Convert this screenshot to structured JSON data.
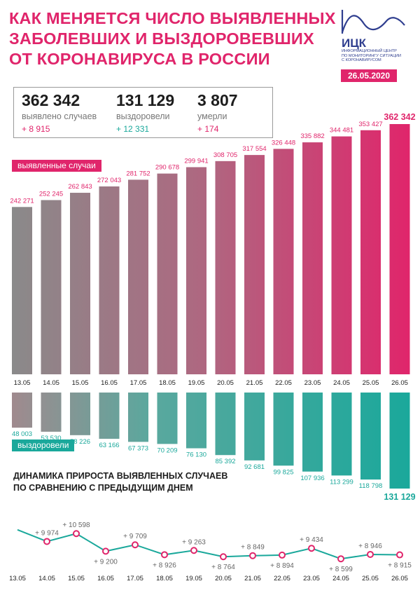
{
  "header": {
    "title_lines": [
      "КАК МЕНЯЕТСЯ ЧИСЛО ВЫЯВЛЕННЫХ",
      "ЗАБОЛЕВШИХ И ВЫЗДОРОВЕВШИХ",
      "ОТ КОРОНАВИРУСА В РОССИИ"
    ],
    "date": "26.05.2020"
  },
  "logo": {
    "name": "ИЦК",
    "subtitle_lines": [
      "ИНФОРМАЦИОННЫЙ ЦЕНТР",
      "ПО МОНИТОРИНГУ СИТУАЦИИ",
      "С КОРОНАВИРУСОМ"
    ]
  },
  "stats": [
    {
      "value": "362 342",
      "label": "выявлено случаев",
      "delta": "+ 8 915"
    },
    {
      "value": "131 129",
      "label": "выздоровели",
      "delta": "+ 12 331"
    },
    {
      "value": "3 807",
      "label": "умерли",
      "delta": "+ 174"
    }
  ],
  "labels": {
    "cases_tag": "выявленные случаи",
    "recovered_tag": "выздоровели",
    "subtitle_lines": [
      "ДИНАМИКА ПРИРОСТА ВЫЯВЛЕННЫХ СЛУЧАЕВ",
      "ПО СРАВНЕНИЮ С ПРЕДЫДУЩИМ ДНЕМ"
    ]
  },
  "colors": {
    "pink": "#e0256b",
    "grey": "#8a8a8a",
    "teal": "#1aa89b",
    "teal_light": "#a8c4c0",
    "text": "#1d1d1d"
  },
  "chart_data": [
    {
      "type": "bar",
      "title": "выявленные случаи",
      "categories": [
        "13.05",
        "14.05",
        "15.05",
        "16.05",
        "17.05",
        "18.05",
        "19.05",
        "20.05",
        "21.05",
        "22.05",
        "23.05",
        "24.05",
        "25.05",
        "26.05"
      ],
      "values": [
        242271,
        252245,
        262843,
        272043,
        281752,
        290678,
        299941,
        308705,
        317554,
        326448,
        335882,
        344481,
        353427,
        362342
      ],
      "value_labels": [
        "242 271",
        "252 245",
        "262 843",
        "272 043",
        "281 752",
        "290 678",
        "299 941",
        "308 705",
        "317 554",
        "326 448",
        "335 882",
        "344 481",
        "353 427",
        "362 342"
      ],
      "ylim": [
        0,
        362342
      ]
    },
    {
      "type": "bar",
      "title": "выздоровели",
      "categories": [
        "13.05",
        "14.05",
        "15.05",
        "16.05",
        "17.05",
        "18.05",
        "19.05",
        "20.05",
        "21.05",
        "22.05",
        "23.05",
        "24.05",
        "25.05",
        "26.05"
      ],
      "values": [
        48003,
        53530,
        58226,
        63166,
        67373,
        70209,
        76130,
        85392,
        92681,
        99825,
        107936,
        113299,
        118798,
        131129
      ],
      "value_labels": [
        "48 003",
        "53 530",
        "58 226",
        "63 166",
        "67 373",
        "70 209",
        "76 130",
        "85 392",
        "92 681",
        "99 825",
        "107 936",
        "113 299",
        "118 798",
        "131 129"
      ],
      "ylim": [
        0,
        131129
      ],
      "direction": "downward"
    },
    {
      "type": "line",
      "title": "ДИНАМИКА ПРИРОСТА ВЫЯВЛЕННЫХ СЛУЧАЕВ ПО СРАВНЕНИЮ С ПРЕДЫДУЩИМ ДНЕМ",
      "categories": [
        "13.05",
        "14.05",
        "15.05",
        "16.05",
        "17.05",
        "18.05",
        "19.05",
        "20.05",
        "21.05",
        "22.05",
        "23.05",
        "24.05",
        "25.05",
        "26.05"
      ],
      "values": [
        10899,
        9974,
        10598,
        9200,
        9709,
        8926,
        9263,
        8764,
        8849,
        8894,
        9434,
        8599,
        8946,
        8915
      ],
      "value_labels": [
        null,
        "+ 9 974",
        "+ 10 598",
        "+ 9 200",
        "+ 9 709",
        "+ 8 926",
        "+ 9 263",
        "+ 8 764",
        "+ 8 849",
        "+ 8 894",
        "+ 9 434",
        "+ 8 599",
        "+ 8 946",
        "+ 8 915"
      ],
      "label_sides": [
        "",
        "above",
        "above",
        "below",
        "above",
        "below",
        "above",
        "below",
        "above",
        "below",
        "above",
        "below",
        "above",
        "below"
      ],
      "ylim": [
        8000,
        12000
      ]
    }
  ]
}
